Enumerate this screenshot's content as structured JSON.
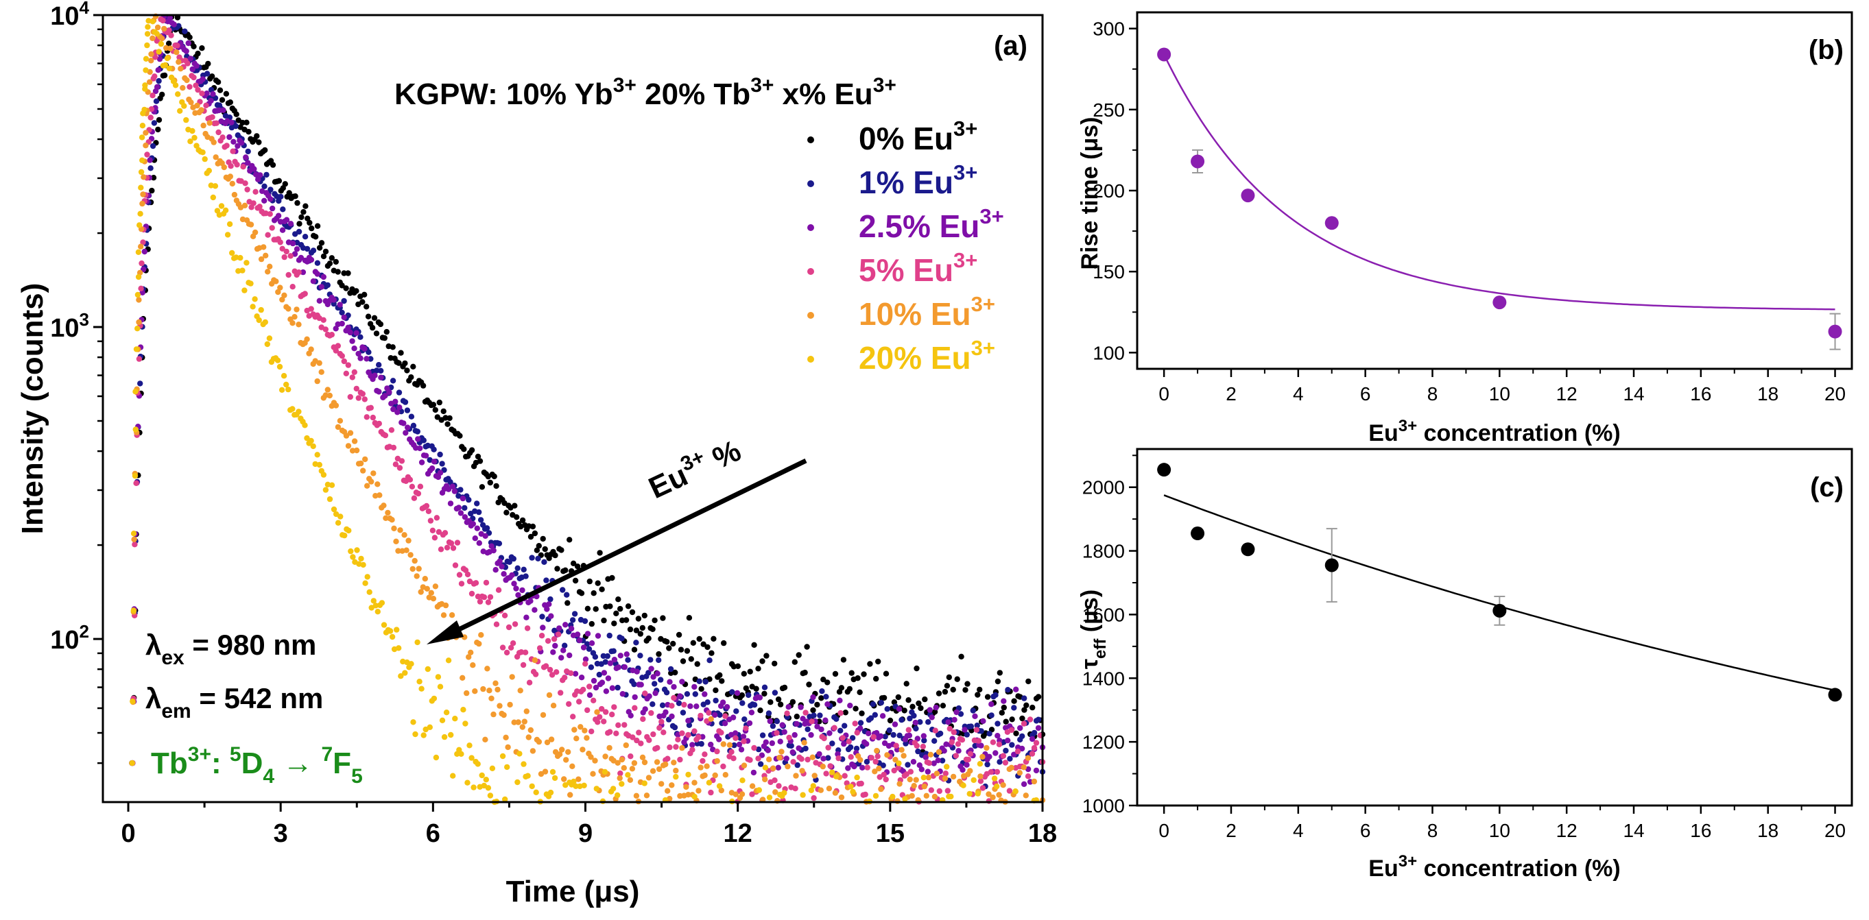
{
  "chart_data": [
    {
      "panel": "(a)",
      "type": "scatter",
      "title": "KGPW: 10% Yb3+ 20% Tb3+ x% Eu3+",
      "title_parts": {
        "t1": "KGPW: 10% Yb",
        "s1": "3+",
        "t2": " 20% Tb",
        "s2": "3+",
        "t3": " x% Eu",
        "s3": "3+"
      },
      "xlabel": "Time (μs)",
      "ylabel": "Intensity (counts)",
      "x_ticks": [
        "0",
        "3",
        "6",
        "9",
        "12",
        "15",
        "18"
      ],
      "y_ticks": [
        {
          "base": "10",
          "exp": "2"
        },
        {
          "base": "10",
          "exp": "3"
        },
        {
          "base": "10",
          "exp": "4"
        }
      ],
      "xlim": [
        -0.5,
        18
      ],
      "ylim": [
        30,
        10000
      ],
      "yscale": "log",
      "series": [
        {
          "name": "0% Eu3+",
          "label": "0% Eu",
          "sup": "3+",
          "color": "#000000",
          "peak_time": 0.85,
          "tau": 1.72,
          "floor": 60,
          "noise": 0.1
        },
        {
          "name": "1% Eu3+",
          "label": "1% Eu",
          "sup": "3+",
          "color": "#1a1a8c",
          "peak_time": 0.75,
          "tau": 1.55,
          "floor": 48,
          "noise": 0.11
        },
        {
          "name": "2.5% Eu3+",
          "label": "2.5% Eu",
          "sup": "3+",
          "color": "#7f0fa8",
          "peak_time": 0.7,
          "tau": 1.52,
          "floor": 46,
          "noise": 0.11
        },
        {
          "name": "5% Eu3+",
          "label": "5% Eu",
          "sup": "3+",
          "color": "#e0408a",
          "peak_time": 0.6,
          "tau": 1.38,
          "floor": 40,
          "noise": 0.12
        },
        {
          "name": "10% Eu3+",
          "label": "10% Eu",
          "sup": "3+",
          "color": "#f39a2e",
          "peak_time": 0.5,
          "tau": 1.2,
          "floor": 32,
          "noise": 0.13
        },
        {
          "name": "20% Eu3+",
          "label": "20% Eu",
          "sup": "3+",
          "color": "#f5c40f",
          "peak_time": 0.4,
          "tau": 0.98,
          "floor": 26,
          "noise": 0.14
        }
      ],
      "arrow_label": {
        "text": "Eu",
        "sup": "3+",
        "suffix": " %"
      },
      "annotations": {
        "ex": {
          "pre": "λ",
          "sub": "ex",
          "post": " = 980 nm"
        },
        "em": {
          "pre": "λ",
          "sub": "em",
          "post": " = 542 nm"
        },
        "transition": {
          "t1": "Tb",
          "sup1": "3+",
          "t2": ": ",
          "sup2": "5",
          "t3": "D",
          "sub3": "4",
          "t4": " → ",
          "sup4": "7",
          "t5": "F",
          "sub5": "5",
          "color": "#1a8c1a"
        }
      }
    },
    {
      "panel": "(b)",
      "type": "scatter",
      "xlabel_parts": {
        "t1": "Eu",
        "sup": "3+",
        "t2": " concentration (%)"
      },
      "ylabel": "Rise time (μs)",
      "x_ticks": [
        "0",
        "2",
        "4",
        "6",
        "8",
        "10",
        "12",
        "14",
        "16",
        "18",
        "20"
      ],
      "y_ticks": [
        "100",
        "150",
        "200",
        "250",
        "300"
      ],
      "xlim": [
        -0.8,
        20.5
      ],
      "ylim": [
        90,
        310
      ],
      "color": "#8a1fb0",
      "x": [
        0,
        1,
        2.5,
        5,
        10,
        20
      ],
      "y": [
        284,
        218,
        197,
        180,
        131,
        113
      ],
      "yerr": [
        0,
        7,
        0,
        0,
        0,
        11
      ],
      "fit": {
        "type": "exp_decay",
        "A": 158,
        "k": 0.27,
        "c": 126
      }
    },
    {
      "panel": "(c)",
      "type": "scatter",
      "xlabel_parts": {
        "t1": "Eu",
        "sup": "3+",
        "t2": " concentration (%)"
      },
      "ylabel_parts": {
        "t1": "τ",
        "sub": "eff",
        "t2": " (μs)"
      },
      "x_ticks": [
        "0",
        "2",
        "4",
        "6",
        "8",
        "10",
        "12",
        "14",
        "16",
        "18",
        "20"
      ],
      "y_ticks": [
        "1000",
        "1200",
        "1400",
        "1600",
        "1800",
        "2000"
      ],
      "xlim": [
        -0.8,
        20.5
      ],
      "ylim": [
        1000,
        2120
      ],
      "color": "#000000",
      "x": [
        0,
        1,
        2.5,
        5,
        10,
        20
      ],
      "y": [
        2055,
        1855,
        1805,
        1755,
        1612,
        1348
      ],
      "yerr": [
        0,
        0,
        0,
        115,
        45,
        0
      ],
      "fit": {
        "type": "exp_decay",
        "A": 1430,
        "k": 0.028,
        "c": 545
      }
    }
  ]
}
